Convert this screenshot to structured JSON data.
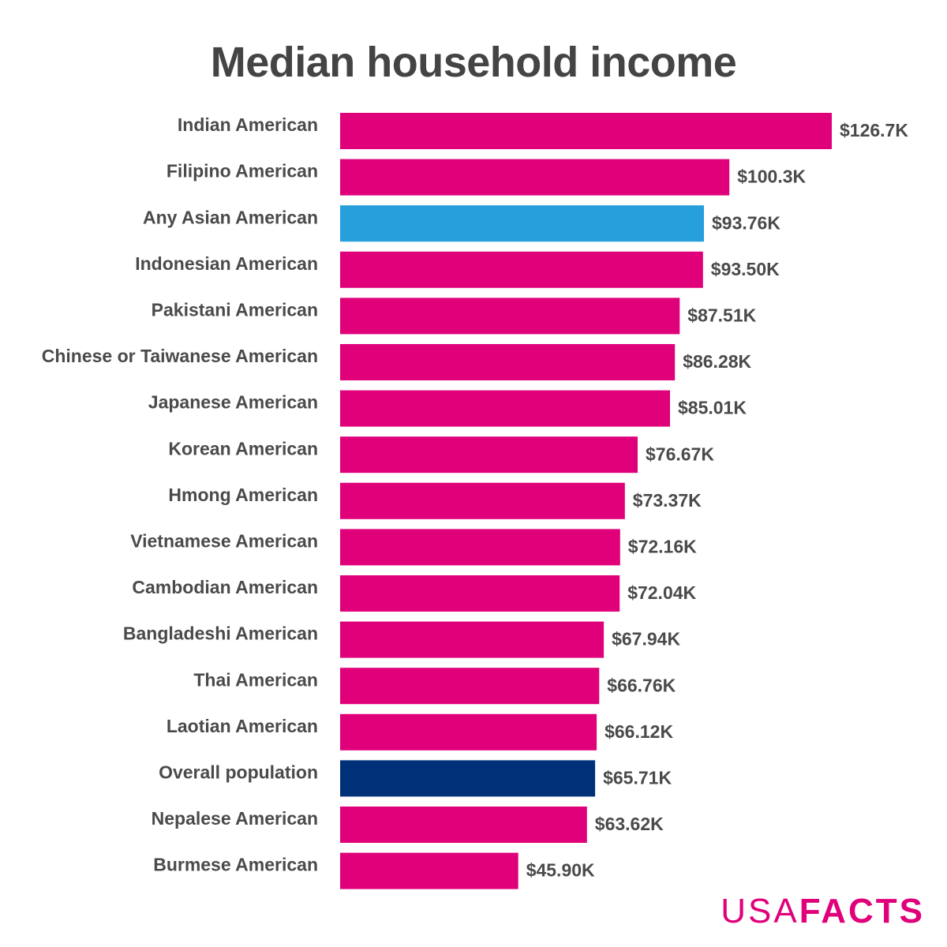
{
  "colors": {
    "bar_default": "#e0007a",
    "bar_asian_overall": "#269fdc",
    "bar_overall_population": "#003078",
    "text": "#4a4a4a",
    "title": "#444444",
    "brand": "#e0007a"
  },
  "logo": {
    "part1": "USA",
    "part2": "FACTS"
  },
  "chart_data": {
    "type": "bar",
    "orientation": "horizontal",
    "title": "Median household income",
    "xlabel": "",
    "ylabel": "",
    "xlim": [
      0,
      126.7
    ],
    "grid": false,
    "legend": "none",
    "categories": [
      "Indian American",
      "Filipino American",
      "Any Asian American",
      "Indonesian American",
      "Pakistani American",
      "Chinese or Taiwanese American",
      "Japanese American",
      "Korean American",
      "Hmong American",
      "Vietnamese American",
      "Cambodian American",
      "Bangladeshi American",
      "Thai American",
      "Laotian American",
      "Overall population",
      "Nepalese American",
      "Burmese American"
    ],
    "values": [
      126.7,
      100.3,
      93.76,
      93.5,
      87.51,
      86.28,
      85.01,
      76.67,
      73.37,
      72.16,
      72.04,
      67.94,
      66.76,
      66.12,
      65.71,
      63.62,
      45.9
    ],
    "value_labels": [
      "$126.7K",
      "$100.3K",
      "$93.76K",
      "$93.50K",
      "$87.51K",
      "$86.28K",
      "$85.01K",
      "$76.67K",
      "$73.37K",
      "$72.16K",
      "$72.04K",
      "$67.94K",
      "$66.76K",
      "$66.12K",
      "$65.71K",
      "$63.62K",
      "$45.90K"
    ],
    "bar_colors": [
      "#e0007a",
      "#e0007a",
      "#269fdc",
      "#e0007a",
      "#e0007a",
      "#e0007a",
      "#e0007a",
      "#e0007a",
      "#e0007a",
      "#e0007a",
      "#e0007a",
      "#e0007a",
      "#e0007a",
      "#e0007a",
      "#003078",
      "#e0007a",
      "#e0007a"
    ]
  }
}
